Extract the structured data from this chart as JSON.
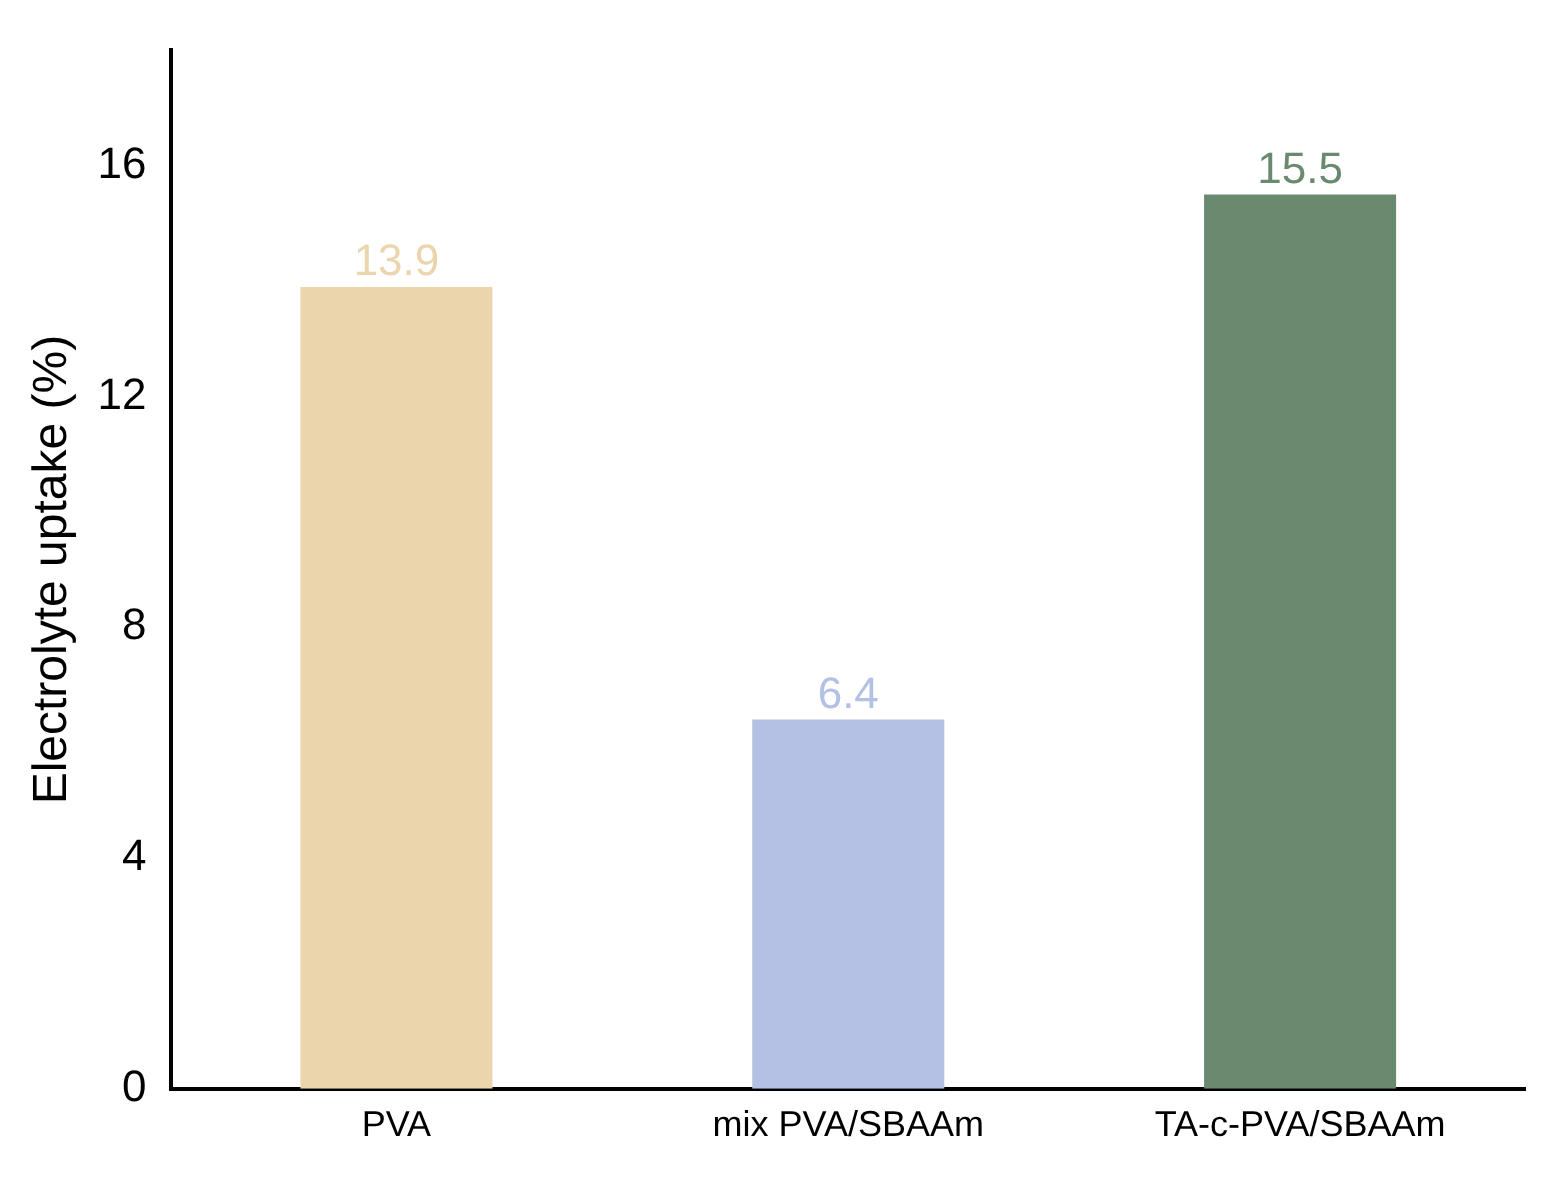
{
  "chart_data": {
    "type": "bar",
    "ylabel": "Electrolyte uptake (%)",
    "categories": [
      "PVA",
      "mix PVA/SBAAm",
      "TA-c-PVA/SBAAm"
    ],
    "values": [
      13.9,
      6.4,
      15.5
    ],
    "colors": [
      "#ebd5ad",
      "#b4c0e4",
      "#6a8a6f"
    ],
    "ylim": [
      0,
      18
    ],
    "yticks": [
      0,
      4,
      8,
      12,
      16
    ],
    "grid": false,
    "legend": false,
    "data_labels": true
  }
}
